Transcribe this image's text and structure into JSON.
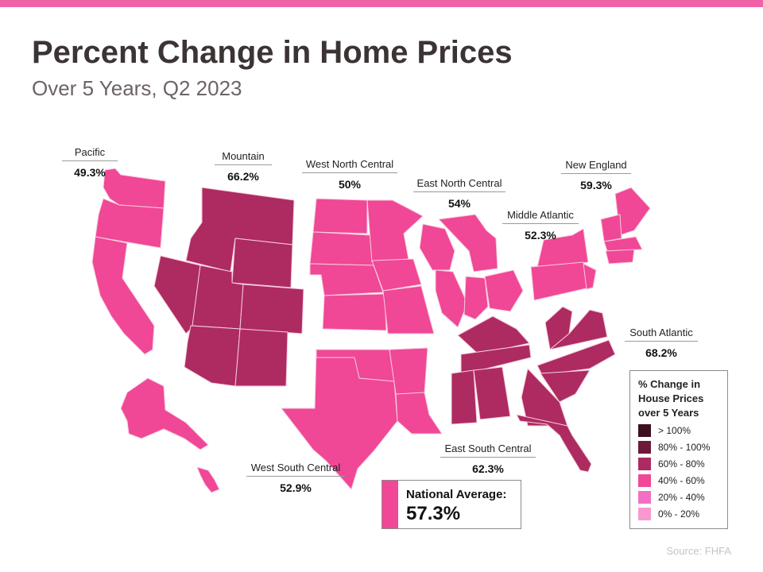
{
  "header": {
    "title": "Percent Change in Home Prices",
    "subtitle": "Over 5 Years, Q2 2023"
  },
  "colors": {
    "top_bar": "#f062a8",
    "band_60_80": "#ad2b61",
    "band_40_60": "#f04796",
    "state_border": "#f6cddd"
  },
  "regions": [
    {
      "id": "pacific",
      "name": "Pacific",
      "value": "49.3%",
      "band": "40% - 60%"
    },
    {
      "id": "mountain",
      "name": "Mountain",
      "value": "66.2%",
      "band": "60% - 80%"
    },
    {
      "id": "west-north-central",
      "name": "West North Central",
      "value": "50%",
      "band": "40% - 60%"
    },
    {
      "id": "east-north-central",
      "name": "East North Central",
      "value": "54%",
      "band": "40% - 60%"
    },
    {
      "id": "middle-atlantic",
      "name": "Middle Atlantic",
      "value": "52.3%",
      "band": "40% - 60%"
    },
    {
      "id": "new-england",
      "name": "New England",
      "value": "59.3%",
      "band": "40% - 60%"
    },
    {
      "id": "south-atlantic",
      "name": "South Atlantic",
      "value": "68.2%",
      "band": "60% - 80%"
    },
    {
      "id": "east-south-central",
      "name": "East South Central",
      "value": "62.3%",
      "band": "60% - 80%"
    },
    {
      "id": "west-south-central",
      "name": "West South Central",
      "value": "52.9%",
      "band": "40% - 60%"
    }
  ],
  "legend": {
    "title": "% Change in House Prices over 5 Years",
    "items": [
      {
        "label": "> 100%",
        "color": "#3d0f20"
      },
      {
        "label": "80% - 100%",
        "color": "#6b1a3a"
      },
      {
        "label": "60% - 80%",
        "color": "#ad2b61"
      },
      {
        "label": "40% - 60%",
        "color": "#f04796"
      },
      {
        "label": "20% - 40%",
        "color": "#f36fc6"
      },
      {
        "label": "0% - 20%",
        "color": "#f799d0"
      }
    ]
  },
  "national": {
    "label": "National Average:",
    "value": "57.3%"
  },
  "source": "Source: FHFA"
}
